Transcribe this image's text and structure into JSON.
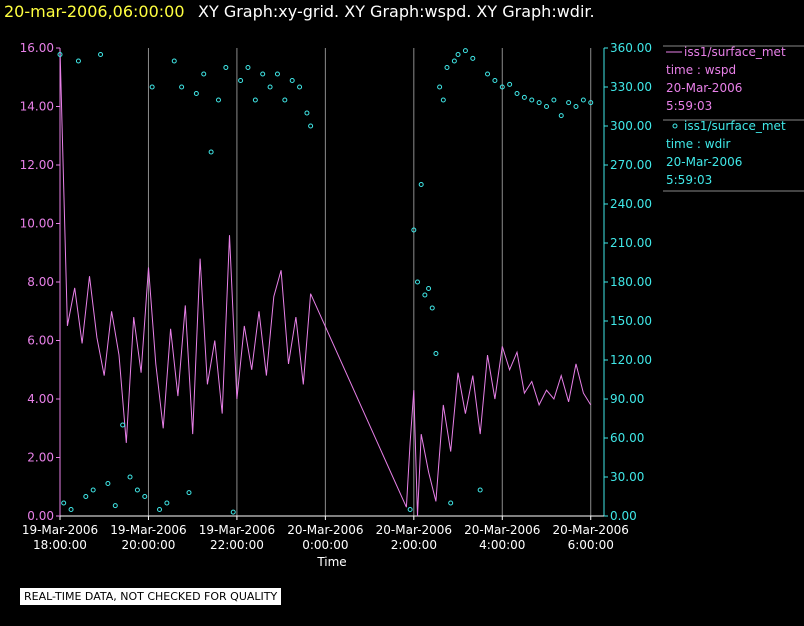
{
  "chart_data": {
    "type": "line",
    "title": "20-mar-2006,06:00:00",
    "subtitle": "XY Graph:xy-grid.  XY Graph:wspd.  XY Graph:wdir.",
    "x_label": "Time",
    "note": "REAL-TIME DATA, NOT CHECKED FOR QUALITY",
    "xlim": [
      "2006-03-19 18:00",
      "2006-03-20 06:18"
    ],
    "xticks": [
      {
        "value": "2006-03-19 18:00",
        "label": "19-Mar-2006\n18:00:00"
      },
      {
        "value": "2006-03-19 20:00",
        "label": "19-Mar-2006\n20:00:00"
      },
      {
        "value": "2006-03-19 22:00",
        "label": "19-Mar-2006\n22:00:00"
      },
      {
        "value": "2006-03-20 00:00",
        "label": "20-Mar-2006\n0:00:00"
      },
      {
        "value": "2006-03-20 02:00",
        "label": "20-Mar-2006\n2:00:00"
      },
      {
        "value": "2006-03-20 04:00",
        "label": "20-Mar-2006\n4:00:00"
      },
      {
        "value": "2006-03-20 06:00",
        "label": "20-Mar-2006\n6:00:00"
      }
    ],
    "ylim": [
      0,
      16
    ],
    "yticks": [
      {
        "value": 0,
        "label": "0.00"
      },
      {
        "value": 2,
        "label": "2.00"
      },
      {
        "value": 4,
        "label": "4.00"
      },
      {
        "value": 6,
        "label": "6.00"
      },
      {
        "value": 8,
        "label": "8.00"
      },
      {
        "value": 10,
        "label": "10.00"
      },
      {
        "value": 12,
        "label": "12.00"
      },
      {
        "value": 14,
        "label": "14.00"
      },
      {
        "value": 16,
        "label": "16.00"
      }
    ],
    "y2lim": [
      0,
      360
    ],
    "y2ticks": [
      {
        "value": 0,
        "label": "0.00"
      },
      {
        "value": 30,
        "label": "30.00"
      },
      {
        "value": 60,
        "label": "60.00"
      },
      {
        "value": 90,
        "label": "90.00"
      },
      {
        "value": 120,
        "label": "120.00"
      },
      {
        "value": 150,
        "label": "150.00"
      },
      {
        "value": 180,
        "label": "180.00"
      },
      {
        "value": 210,
        "label": "210.00"
      },
      {
        "value": 240,
        "label": "240.00"
      },
      {
        "value": 270,
        "label": "270.00"
      },
      {
        "value": 300,
        "label": "300.00"
      },
      {
        "value": 330,
        "label": "330.00"
      },
      {
        "value": 360,
        "label": "360.00"
      }
    ],
    "grid": true,
    "series": [
      {
        "name": "iss1/surface_met",
        "legend": [
          "time : wspd",
          "20-Mar-2006",
          "5:59:03"
        ],
        "color": "#e880e8",
        "mode": "line",
        "x": [
          "2006-03-19 18:00",
          "2006-03-19 18:10",
          "2006-03-19 18:20",
          "2006-03-19 18:30",
          "2006-03-19 18:40",
          "2006-03-19 18:50",
          "2006-03-19 19:00",
          "2006-03-19 19:10",
          "2006-03-19 19:20",
          "2006-03-19 19:30",
          "2006-03-19 19:40",
          "2006-03-19 19:50",
          "2006-03-19 20:00",
          "2006-03-19 20:10",
          "2006-03-19 20:20",
          "2006-03-19 20:30",
          "2006-03-19 20:40",
          "2006-03-19 20:50",
          "2006-03-19 21:00",
          "2006-03-19 21:10",
          "2006-03-19 21:20",
          "2006-03-19 21:30",
          "2006-03-19 21:40",
          "2006-03-19 21:50",
          "2006-03-19 22:00",
          "2006-03-19 22:10",
          "2006-03-19 22:20",
          "2006-03-19 22:30",
          "2006-03-19 22:40",
          "2006-03-19 22:50",
          "2006-03-19 23:00",
          "2006-03-19 23:10",
          "2006-03-19 23:20",
          "2006-03-19 23:30",
          "2006-03-19 23:40",
          "2006-03-20 01:50",
          "2006-03-20 01:55",
          "2006-03-20 02:00",
          "2006-03-20 02:05",
          "2006-03-20 02:10",
          "2006-03-20 02:20",
          "2006-03-20 02:30",
          "2006-03-20 02:40",
          "2006-03-20 02:50",
          "2006-03-20 03:00",
          "2006-03-20 03:10",
          "2006-03-20 03:20",
          "2006-03-20 03:30",
          "2006-03-20 03:40",
          "2006-03-20 03:50",
          "2006-03-20 04:00",
          "2006-03-20 04:10",
          "2006-03-20 04:20",
          "2006-03-20 04:30",
          "2006-03-20 04:40",
          "2006-03-20 04:50",
          "2006-03-20 05:00",
          "2006-03-20 05:10",
          "2006-03-20 05:20",
          "2006-03-20 05:30",
          "2006-03-20 05:40",
          "2006-03-20 05:50",
          "2006-03-20 06:00"
        ],
        "values": [
          16.0,
          6.5,
          7.8,
          5.9,
          8.2,
          6.1,
          4.8,
          7.0,
          5.5,
          2.5,
          6.8,
          4.9,
          8.5,
          5.2,
          3.0,
          6.4,
          4.1,
          7.2,
          2.8,
          8.8,
          4.5,
          6.0,
          3.5,
          9.6,
          4.0,
          6.5,
          5.0,
          7.0,
          4.8,
          7.5,
          8.4,
          5.2,
          6.8,
          4.5,
          7.6,
          0.3,
          2.5,
          4.3,
          0.0,
          2.8,
          1.5,
          0.5,
          3.8,
          2.2,
          4.9,
          3.5,
          4.8,
          2.8,
          5.5,
          4.0,
          5.8,
          5.0,
          5.6,
          4.2,
          4.6,
          3.8,
          4.3,
          4.0,
          4.8,
          3.9,
          5.2,
          4.2,
          3.8
        ]
      },
      {
        "name": "iss1/surface_met",
        "legend": [
          "time : wdir",
          "20-Mar-2006",
          "5:59:03"
        ],
        "color": "#40e8e8",
        "mode": "points",
        "axis": "y2",
        "x": [
          "2006-03-19 18:00",
          "2006-03-19 18:05",
          "2006-03-19 18:15",
          "2006-03-19 18:25",
          "2006-03-19 18:35",
          "2006-03-19 18:45",
          "2006-03-19 18:55",
          "2006-03-19 19:05",
          "2006-03-19 19:15",
          "2006-03-19 19:25",
          "2006-03-19 19:35",
          "2006-03-19 19:45",
          "2006-03-19 19:55",
          "2006-03-19 20:05",
          "2006-03-19 20:15",
          "2006-03-19 20:25",
          "2006-03-19 20:35",
          "2006-03-19 20:45",
          "2006-03-19 20:55",
          "2006-03-19 21:05",
          "2006-03-19 21:15",
          "2006-03-19 21:25",
          "2006-03-19 21:35",
          "2006-03-19 21:45",
          "2006-03-19 21:55",
          "2006-03-19 22:05",
          "2006-03-19 22:15",
          "2006-03-19 22:25",
          "2006-03-19 22:35",
          "2006-03-19 22:45",
          "2006-03-19 22:55",
          "2006-03-19 23:05",
          "2006-03-19 23:15",
          "2006-03-19 23:25",
          "2006-03-19 23:35",
          "2006-03-19 23:40",
          "2006-03-20 01:55",
          "2006-03-20 02:00",
          "2006-03-20 02:05",
          "2006-03-20 02:10",
          "2006-03-20 02:15",
          "2006-03-20 02:20",
          "2006-03-20 02:25",
          "2006-03-20 02:30",
          "2006-03-20 02:35",
          "2006-03-20 02:40",
          "2006-03-20 02:45",
          "2006-03-20 02:50",
          "2006-03-20 02:55",
          "2006-03-20 03:00",
          "2006-03-20 03:10",
          "2006-03-20 03:20",
          "2006-03-20 03:30",
          "2006-03-20 03:40",
          "2006-03-20 03:50",
          "2006-03-20 04:00",
          "2006-03-20 04:10",
          "2006-03-20 04:20",
          "2006-03-20 04:30",
          "2006-03-20 04:40",
          "2006-03-20 04:50",
          "2006-03-20 05:00",
          "2006-03-20 05:10",
          "2006-03-20 05:20",
          "2006-03-20 05:30",
          "2006-03-20 05:40",
          "2006-03-20 05:50",
          "2006-03-20 06:00"
        ],
        "values": [
          355,
          10,
          5,
          350,
          15,
          20,
          355,
          25,
          8,
          70,
          30,
          20,
          15,
          330,
          5,
          10,
          350,
          330,
          18,
          325,
          340,
          280,
          320,
          345,
          3,
          335,
          345,
          320,
          340,
          330,
          340,
          320,
          335,
          330,
          310,
          300,
          5,
          220,
          180,
          255,
          170,
          175,
          160,
          125,
          330,
          320,
          345,
          10,
          350,
          355,
          358,
          352,
          20,
          340,
          335,
          330,
          332,
          325,
          322,
          320,
          318,
          315,
          320,
          308,
          318,
          315,
          320,
          318
        ]
      }
    ]
  }
}
